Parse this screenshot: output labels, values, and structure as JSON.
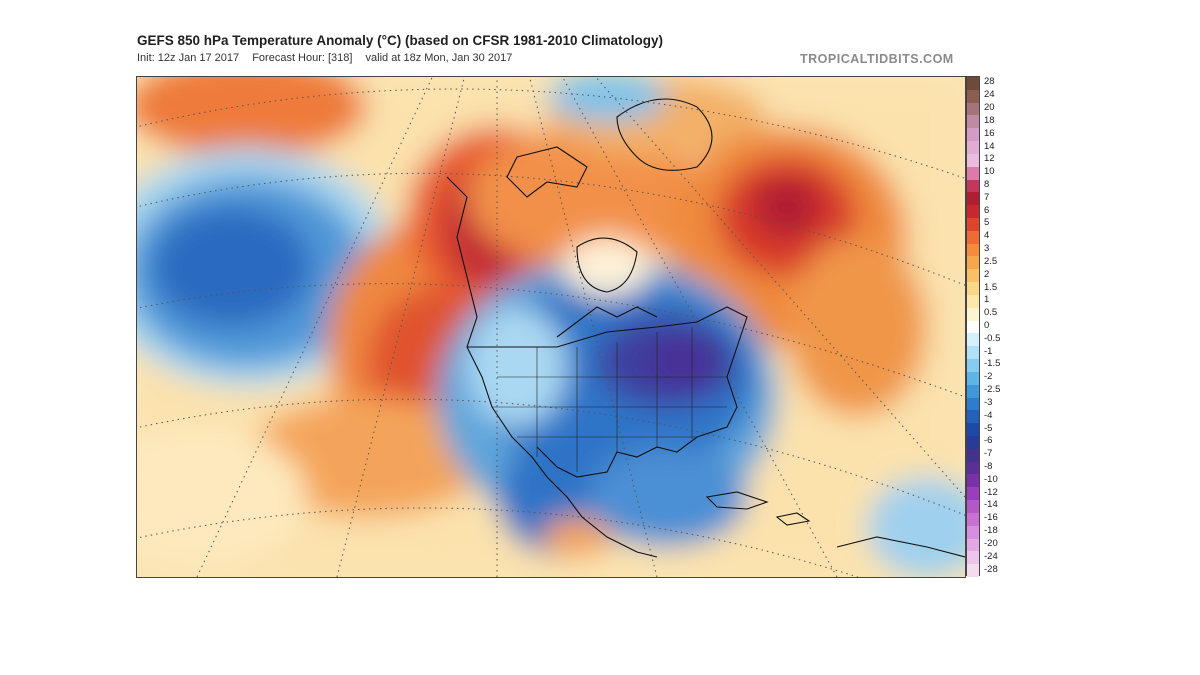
{
  "header": {
    "title": "GEFS 850 hPa Temperature Anomaly (°C) (based on CFSR 1981-2010 Climatology)",
    "init": "Init: 12z Jan 17 2017",
    "forecast_hour": "Forecast Hour: [318]",
    "valid": "valid at 18z Mon, Jan 30 2017",
    "brand": "TROPICALTIDBITS.COM"
  },
  "map": {
    "region": "North America",
    "variable": "850 hPa temperature anomaly",
    "units": "°C"
  },
  "colorbar": {
    "labels": [
      "28",
      "24",
      "20",
      "18",
      "16",
      "14",
      "12",
      "10",
      "8",
      "7",
      "6",
      "5",
      "4",
      "3",
      "2.5",
      "2",
      "1.5",
      "1",
      "0.5",
      "0",
      "-0.5",
      "-1",
      "-1.5",
      "-2",
      "-2.5",
      "-3",
      "-4",
      "-5",
      "-6",
      "-7",
      "-8",
      "-10",
      "-12",
      "-14",
      "-16",
      "-18",
      "-20",
      "-24",
      "-28"
    ],
    "colors": [
      "#6e4a3a",
      "#8c5e4f",
      "#a6737a",
      "#bf8aa2",
      "#d39cc6",
      "#e0acd4",
      "#e8bde0",
      "#dc7aa8",
      "#c2375b",
      "#b01e34",
      "#c8272d",
      "#e0442c",
      "#ee6b31",
      "#f48c3c",
      "#f6a64d",
      "#f9c066",
      "#fbd785",
      "#fce8a8",
      "#fdf4d2",
      "#ffffff",
      "#d6f1fb",
      "#aee0f6",
      "#86ccf0",
      "#5db4e8",
      "#3f97dc",
      "#2e7ccd",
      "#2262bd",
      "#1d4aa8",
      "#2a3a98",
      "#43338f",
      "#5b2f97",
      "#7a30a8",
      "#9a3fbb",
      "#b657c8",
      "#c971d3",
      "#d88ede",
      "#e4a9e4",
      "#edc4ea",
      "#f4dcee"
    ]
  }
}
